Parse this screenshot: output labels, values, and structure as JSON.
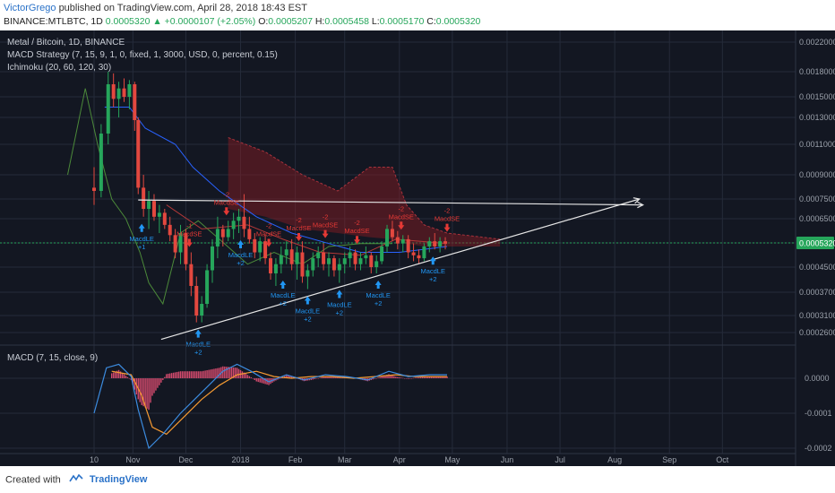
{
  "header": {
    "user": "VictorGrego",
    "published_text": "published on TradingView.com, April 28, 2018 18:43 EST",
    "symbol": "BINANCE:MTLBTC, 1D",
    "last": "0.0005320",
    "change_arrow": "▲",
    "change": "+0.0000107 (+2.05%)",
    "o_label": "O:",
    "o_value": "0.0005207",
    "h_label": "H:",
    "h_value": "0.0005458",
    "l_label": "L:",
    "l_value": "0.0005170",
    "c_label": "C:",
    "c_value": "0.0005320"
  },
  "legend": {
    "title": "Metal / Bitcoin, 1D, BINANCE",
    "macd_strategy": "MACD Strategy (7, 15, 9, 1, 0, fixed, 1, 3000, USD, 0, percent, 0.15)",
    "ichimoku": "Ichimoku (20, 60, 120, 30)",
    "macd_pane": "MACD (7, 15, close, 9)"
  },
  "footer": {
    "created_with": "Created with",
    "brand": "TradingView"
  },
  "colors": {
    "bg": "#131722",
    "grid": "#252b3a",
    "up": "#26a65b",
    "down": "#e3483f",
    "trendline": "#e6e6e6",
    "macd": "#3c8ce0",
    "signal": "#f59a32",
    "hist_pos": "#d44b6e",
    "kijun": "#2962ff",
    "tenkan": "#b23838",
    "lagging": "#4c8a3a",
    "cloud": "#8e1c24",
    "buy": "#2196f3",
    "sell": "#e53935",
    "price_badge": "#26a65b"
  },
  "chart_data": [
    {
      "type": "candlestick",
      "title": "Metal / Bitcoin, 1D, BINANCE",
      "y_ticks": [
        "0.0022000",
        "0.0018000",
        "0.0015000",
        "0.0013000",
        "0.0011000",
        "0.0009000",
        "0.0007500",
        "0.0006500",
        "0.0005320",
        "0.0004500",
        "0.0003700",
        "0.0003100",
        "0.0002600"
      ],
      "x_ticks": [
        "10",
        "Nov",
        "Dec",
        "2018",
        "Feb",
        "Mar",
        "Apr",
        "May",
        "Jun",
        "Jul",
        "Aug",
        "Sep",
        "Oct"
      ],
      "last_price": "0.0005320",
      "annotations": {
        "buy": [
          {
            "date": "2017-11-06",
            "label": "MacdLE",
            "qty": "+1"
          },
          {
            "date": "2017-12-08",
            "label": "MacdLE",
            "qty": "+2"
          },
          {
            "date": "2018-01-01",
            "label": "MacdLE",
            "qty": "+2"
          },
          {
            "date": "2018-01-25",
            "label": "MacdLE",
            "qty": "+2"
          },
          {
            "date": "2018-02-08",
            "label": "MacdLE",
            "qty": "+2"
          },
          {
            "date": "2018-02-26",
            "label": "MacdLE",
            "qty": "+2"
          },
          {
            "date": "2018-03-20",
            "label": "MacdLE",
            "qty": "+2"
          },
          {
            "date": "2018-04-20",
            "label": "MacdLE",
            "qty": "+2"
          }
        ],
        "sell": [
          {
            "date": "2017-12-03",
            "label": "MacdSE",
            "qty": "-1"
          },
          {
            "date": "2017-12-24",
            "label": "MacdSE",
            "qty": "-2"
          },
          {
            "date": "2018-01-17",
            "label": "MacdSE",
            "qty": "-2"
          },
          {
            "date": "2018-02-03",
            "label": "MacdSE",
            "qty": "-2"
          },
          {
            "date": "2018-02-18",
            "label": "MacdSE",
            "qty": "-2"
          },
          {
            "date": "2018-03-08",
            "label": "MacdSE",
            "qty": "-2"
          },
          {
            "date": "2018-04-02",
            "label": "MacdSE",
            "qty": "-2"
          },
          {
            "date": "2018-04-28",
            "label": "MacdSE",
            "qty": "-2"
          }
        ]
      },
      "trendlines": [
        {
          "name": "rising support",
          "from": [
            "2017-11-17",
            0.00024
          ],
          "to": [
            "2018-08-15",
            0.00075
          ]
        },
        {
          "name": "horizontal resistance",
          "from": [
            "2017-11-04",
            0.000745
          ],
          "to": [
            "2018-08-17",
            0.00072
          ]
        }
      ],
      "ohlc_series": [
        [
          "2017-10-10",
          0.00082,
          0.00095,
          0.00072,
          0.0008
        ],
        [
          "2017-10-14",
          0.0008,
          0.00125,
          0.00076,
          0.00118
        ],
        [
          "2017-10-18",
          0.00118,
          0.0018,
          0.0011,
          0.00165
        ],
        [
          "2017-10-21",
          0.00165,
          0.00178,
          0.0014,
          0.00148
        ],
        [
          "2017-10-24",
          0.00148,
          0.00168,
          0.0013,
          0.0016
        ],
        [
          "2017-10-27",
          0.0016,
          0.00172,
          0.00145,
          0.0015
        ],
        [
          "2017-10-30",
          0.0015,
          0.0017,
          0.00138,
          0.00165
        ],
        [
          "2017-11-02",
          0.00165,
          0.00168,
          0.0012,
          0.00128
        ],
        [
          "2017-11-04",
          0.00128,
          0.0013,
          0.00078,
          0.00082
        ],
        [
          "2017-11-07",
          0.00082,
          0.0009,
          0.00066,
          0.0007
        ],
        [
          "2017-11-10",
          0.0007,
          0.0008,
          0.0006,
          0.00074
        ],
        [
          "2017-11-13",
          0.00074,
          0.00078,
          0.00064,
          0.00066
        ],
        [
          "2017-11-16",
          0.00066,
          0.00072,
          0.00058,
          0.00068
        ],
        [
          "2017-11-19",
          0.00068,
          0.0007,
          0.0006,
          0.00062
        ],
        [
          "2017-11-22",
          0.00062,
          0.00066,
          0.00054,
          0.00057
        ],
        [
          "2017-11-25",
          0.00057,
          0.0006,
          0.00048,
          0.0005
        ],
        [
          "2017-11-28",
          0.0005,
          0.00062,
          0.00046,
          0.00058
        ],
        [
          "2017-12-01",
          0.00058,
          0.0006,
          0.00044,
          0.00046
        ],
        [
          "2017-12-04",
          0.00046,
          0.0005,
          0.00036,
          0.00039
        ],
        [
          "2017-12-07",
          0.00039,
          0.00042,
          0.00029,
          0.00031
        ],
        [
          "2017-12-10",
          0.00031,
          0.00036,
          0.00029,
          0.00034
        ],
        [
          "2017-12-13",
          0.00034,
          0.00046,
          0.00033,
          0.00044
        ],
        [
          "2017-12-16",
          0.00044,
          0.00055,
          0.0004,
          0.00052
        ],
        [
          "2017-12-19",
          0.00052,
          0.00066,
          0.00048,
          0.0006
        ],
        [
          "2017-12-22",
          0.0006,
          0.00062,
          0.00052,
          0.00056
        ],
        [
          "2017-12-25",
          0.00056,
          0.00064,
          0.00054,
          0.0006
        ],
        [
          "2017-12-28",
          0.0006,
          0.00068,
          0.00055,
          0.00064
        ],
        [
          "2017-12-31",
          0.00064,
          0.0007,
          0.00058,
          0.00066
        ],
        [
          "2018-01-03",
          0.00066,
          0.00078,
          0.00056,
          0.0006
        ],
        [
          "2018-01-06",
          0.0006,
          0.00066,
          0.00053,
          0.00055
        ],
        [
          "2018-01-09",
          0.00055,
          0.00058,
          0.00048,
          0.0005
        ],
        [
          "2018-01-12",
          0.0005,
          0.00056,
          0.00047,
          0.00054
        ],
        [
          "2018-01-15",
          0.00054,
          0.00057,
          0.00046,
          0.00048
        ],
        [
          "2018-01-18",
          0.00048,
          0.0005,
          0.00041,
          0.00043
        ],
        [
          "2018-01-21",
          0.00043,
          0.00048,
          0.00039,
          0.00046
        ],
        [
          "2018-01-24",
          0.00046,
          0.00052,
          0.00043,
          0.00049
        ],
        [
          "2018-01-27",
          0.00049,
          0.00054,
          0.00046,
          0.00051
        ],
        [
          "2018-01-30",
          0.00051,
          0.00055,
          0.00044,
          0.00046
        ],
        [
          "2018-02-02",
          0.00046,
          0.00052,
          0.00041,
          0.0005
        ],
        [
          "2018-02-05",
          0.0005,
          0.00054,
          0.0004,
          0.00042
        ],
        [
          "2018-02-08",
          0.00042,
          0.00046,
          0.00038,
          0.00044
        ],
        [
          "2018-02-11",
          0.00044,
          0.0005,
          0.00042,
          0.00048
        ],
        [
          "2018-02-14",
          0.00048,
          0.00052,
          0.00045,
          0.0005
        ],
        [
          "2018-02-17",
          0.0005,
          0.00053,
          0.00044,
          0.00046
        ],
        [
          "2018-02-20",
          0.00046,
          0.0005,
          0.00042,
          0.00048
        ],
        [
          "2018-02-23",
          0.00048,
          0.00049,
          0.00042,
          0.00044
        ],
        [
          "2018-02-26",
          0.00044,
          0.00048,
          0.0004,
          0.00046
        ],
        [
          "2018-03-01",
          0.00046,
          0.0005,
          0.00043,
          0.00048
        ],
        [
          "2018-03-04",
          0.00048,
          0.00052,
          0.00045,
          0.0005
        ],
        [
          "2018-03-07",
          0.0005,
          0.00051,
          0.00044,
          0.00046
        ],
        [
          "2018-03-10",
          0.00046,
          0.0005,
          0.00044,
          0.00048
        ],
        [
          "2018-03-13",
          0.00048,
          0.00052,
          0.00046,
          0.00049
        ],
        [
          "2018-03-16",
          0.00049,
          0.0005,
          0.00043,
          0.00045
        ],
        [
          "2018-03-19",
          0.00045,
          0.00049,
          0.00043,
          0.00047
        ],
        [
          "2018-03-22",
          0.00047,
          0.00054,
          0.00046,
          0.00052
        ],
        [
          "2018-03-25",
          0.00052,
          0.00062,
          0.0005,
          0.0006
        ],
        [
          "2018-03-28",
          0.0006,
          0.00064,
          0.00054,
          0.00056
        ],
        [
          "2018-03-31",
          0.00056,
          0.00059,
          0.00051,
          0.00053
        ],
        [
          "2018-04-03",
          0.00053,
          0.00057,
          0.0005,
          0.00055
        ],
        [
          "2018-04-06",
          0.00055,
          0.00057,
          0.00048,
          0.0005
        ],
        [
          "2018-04-09",
          0.0005,
          0.00053,
          0.00047,
          0.00049
        ],
        [
          "2018-04-12",
          0.00049,
          0.00051,
          0.00046,
          0.00048
        ],
        [
          "2018-04-15",
          0.00048,
          0.00053,
          0.00047,
          0.00052
        ],
        [
          "2018-04-18",
          0.00052,
          0.00056,
          0.0005,
          0.00054
        ],
        [
          "2018-04-21",
          0.00054,
          0.00058,
          0.00051,
          0.00052
        ],
        [
          "2018-04-24",
          0.00052,
          0.00056,
          0.0005,
          0.00054
        ],
        [
          "2018-04-27",
          0.00054,
          0.00056,
          0.00051,
          0.00053
        ]
      ],
      "ichimoku": {
        "kijun": [
          [
            "2017-10-16",
            0.0014
          ],
          [
            "2017-10-30",
            0.0014
          ],
          [
            "2017-11-08",
            0.00122
          ],
          [
            "2017-11-25",
            0.0011
          ],
          [
            "2017-12-05",
            0.00095
          ],
          [
            "2017-12-20",
            0.0008
          ],
          [
            "2018-01-10",
            0.00066
          ],
          [
            "2018-01-30",
            0.00058
          ],
          [
            "2018-02-20",
            0.00053
          ],
          [
            "2018-03-10",
            0.0005
          ],
          [
            "2018-04-01",
            0.0005
          ],
          [
            "2018-04-28",
            0.00052
          ]
        ],
        "tenkan": [
          [
            "2017-11-20",
            0.00072
          ],
          [
            "2017-12-10",
            0.0006
          ],
          [
            "2018-01-05",
            0.00062
          ],
          [
            "2018-01-25",
            0.00055
          ],
          [
            "2018-02-15",
            0.0005
          ],
          [
            "2018-03-10",
            0.00049
          ],
          [
            "2018-03-30",
            0.00055
          ],
          [
            "2018-04-28",
            0.00053
          ]
        ],
        "lagging": [
          [
            "2017-09-25",
            0.0009
          ],
          [
            "2017-10-05",
            0.0016
          ],
          [
            "2017-10-12",
            0.0011
          ],
          [
            "2017-10-20",
            0.00075
          ],
          [
            "2017-10-28",
            0.00065
          ],
          [
            "2017-11-05",
            0.0005
          ],
          [
            "2017-11-10",
            0.0004
          ],
          [
            "2017-11-18",
            0.00034
          ],
          [
            "2017-11-28",
            0.00058
          ],
          [
            "2017-12-08",
            0.00064
          ],
          [
            "2017-12-20",
            0.00055
          ],
          [
            "2018-01-05",
            0.00046
          ],
          [
            "2018-01-20",
            0.0005
          ],
          [
            "2018-02-05",
            0.00046
          ],
          [
            "2018-02-20",
            0.00052
          ],
          [
            "2018-03-10",
            0.00053
          ],
          [
            "2018-03-28",
            0.00053
          ]
        ],
        "cloud_top": [
          [
            "2017-12-25",
            0.00115
          ],
          [
            "2018-01-15",
            0.00105
          ],
          [
            "2018-02-05",
            0.0009
          ],
          [
            "2018-02-25",
            0.0008
          ],
          [
            "2018-03-15",
            0.00095
          ],
          [
            "2018-03-28",
            0.00095
          ],
          [
            "2018-04-05",
            0.00072
          ],
          [
            "2018-04-15",
            0.00062
          ],
          [
            "2018-04-28",
            0.00058
          ],
          [
            "2018-05-28",
            0.00055
          ]
        ],
        "cloud_bottom": [
          [
            "2017-12-25",
            0.0007
          ],
          [
            "2018-01-15",
            0.00066
          ],
          [
            "2018-02-05",
            0.0006
          ],
          [
            "2018-02-25",
            0.00058
          ],
          [
            "2018-03-15",
            0.00056
          ],
          [
            "2018-03-28",
            0.00055
          ],
          [
            "2018-04-05",
            0.00053
          ],
          [
            "2018-04-15",
            0.00052
          ],
          [
            "2018-04-28",
            0.00052
          ],
          [
            "2018-05-28",
            0.00052
          ]
        ]
      }
    },
    {
      "type": "line",
      "title": "MACD (7, 15, close, 9)",
      "y_ticks": [
        "0.0000",
        "-0.0001",
        "-0.0002"
      ],
      "ylim": [
        -0.00022,
        5e-05
      ],
      "series": [
        {
          "name": "MACD",
          "x": [
            "2017-10-10",
            "2017-10-17",
            "2017-10-24",
            "2017-10-31",
            "2017-11-04",
            "2017-11-10",
            "2017-11-18",
            "2017-11-28",
            "2017-12-06",
            "2017-12-14",
            "2017-12-22",
            "2017-12-30",
            "2018-01-07",
            "2018-01-17",
            "2018-01-27",
            "2018-02-06",
            "2018-02-18",
            "2018-03-02",
            "2018-03-14",
            "2018-03-26",
            "2018-04-06",
            "2018-04-18",
            "2018-04-28"
          ],
          "values": [
            -0.0001,
            3e-05,
            4e-05,
            5e-06,
            -9e-05,
            -0.0002,
            -0.00016,
            -0.0001,
            -6e-05,
            -2e-05,
            2e-05,
            4e-05,
            2e-05,
            -1e-05,
            1e-05,
            -5e-06,
            1e-05,
            5e-06,
            -5e-06,
            2e-05,
            5e-06,
            1e-05,
            1e-05
          ]
        },
        {
          "name": "Signal",
          "x": [
            "2017-10-20",
            "2017-10-31",
            "2017-11-06",
            "2017-11-12",
            "2017-11-20",
            "2017-11-30",
            "2017-12-10",
            "2017-12-20",
            "2017-12-30",
            "2018-01-10",
            "2018-01-20",
            "2018-01-30",
            "2018-02-10",
            "2018-02-22",
            "2018-03-06",
            "2018-03-18",
            "2018-03-30",
            "2018-04-10",
            "2018-04-28"
          ],
          "values": [
            2e-05,
            1e-05,
            -5e-05,
            -0.00014,
            -0.00016,
            -0.00011,
            -6e-05,
            -2e-05,
            1e-05,
            2e-05,
            5e-06,
            0.0,
            5e-06,
            5e-06,
            0.0,
            5e-06,
            1e-05,
            5e-06,
            5e-06
          ]
        }
      ]
    }
  ]
}
